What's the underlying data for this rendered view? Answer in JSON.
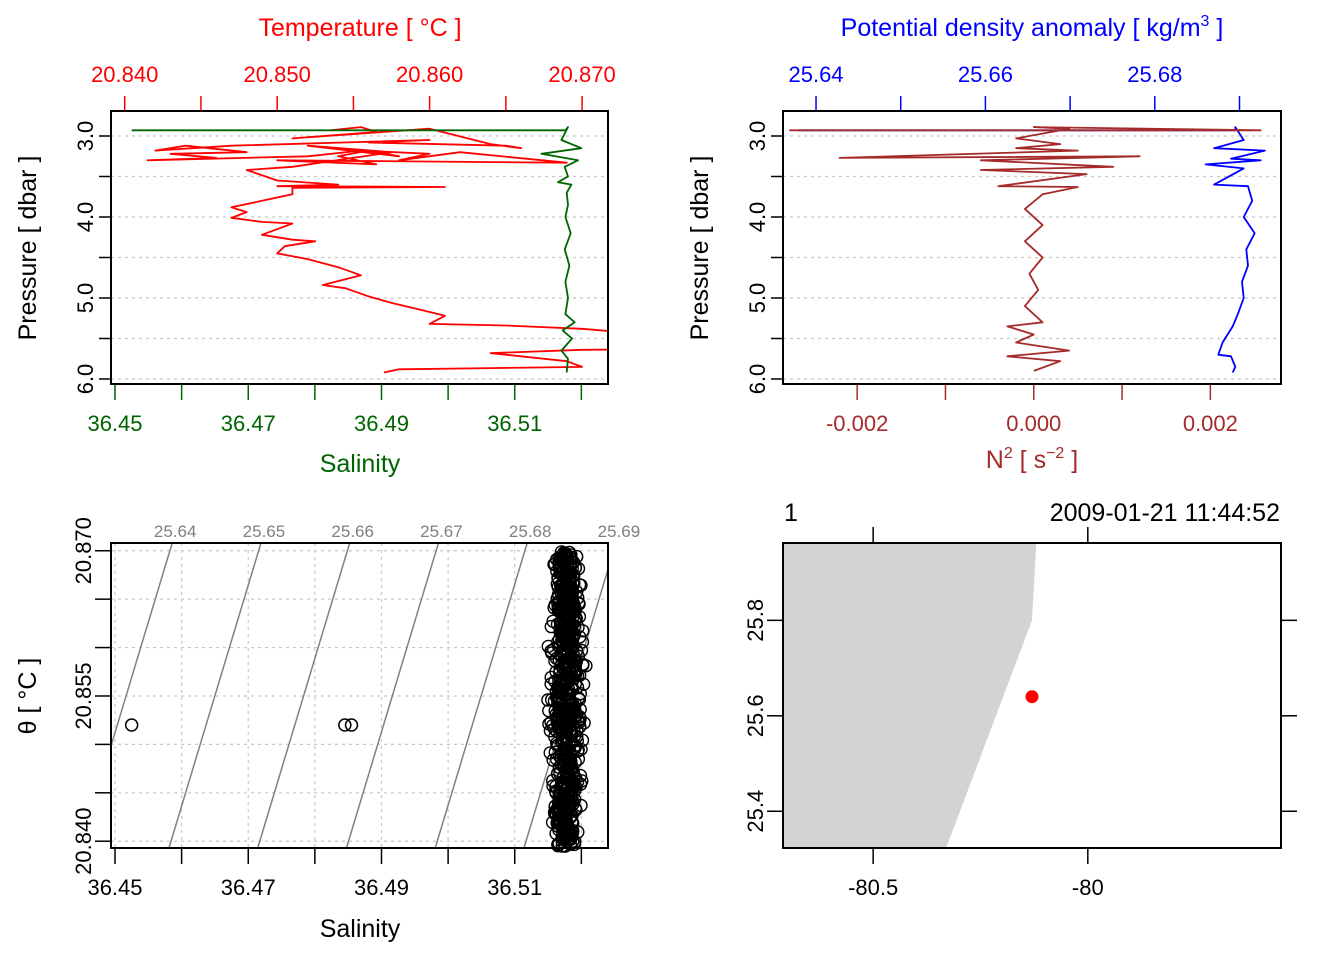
{
  "chart_data": [
    {
      "id": "profile-ts",
      "type": "line",
      "ylabel": "Pressure [ dbar ]",
      "y_ticks": [
        "3.0",
        "4.0",
        "5.0",
        "6.0"
      ],
      "y_minor_ticks": [
        3.0,
        3.5,
        4.0,
        4.5,
        5.0,
        5.5,
        6.0
      ],
      "ylim": [
        6.05,
        2.8
      ],
      "grid": true,
      "top_axis": {
        "label": "Temperature [ °C ]",
        "color": "#ff0000",
        "ticks": [
          "20.840",
          "20.850",
          "20.860",
          "20.870"
        ],
        "tick_values": [
          20.84,
          20.845,
          20.85,
          20.855,
          20.86,
          20.865,
          20.87
        ],
        "range": [
          20.8391,
          20.8717
        ]
      },
      "bottom_axis": {
        "label": "Salinity",
        "color": "#006400",
        "ticks": [
          "36.45",
          "36.47",
          "36.49",
          "36.51"
        ],
        "tick_values": [
          36.45,
          36.46,
          36.47,
          36.48,
          36.49,
          36.5,
          36.51,
          36.52
        ],
        "range": [
          36.4494,
          36.524
        ]
      },
      "series": [
        {
          "name": "Temperature",
          "color": "#ff0000",
          "axis": "top",
          "points": [
            [
              20.8535,
              2.93
            ],
            [
              20.8555,
              2.89
            ],
            [
              20.8565,
              2.95
            ],
            [
              20.851,
              3.03
            ],
            [
              20.86,
              2.91
            ],
            [
              20.864,
              3.1
            ],
            [
              20.866,
              3.15
            ],
            [
              20.865,
              3.12
            ],
            [
              20.856,
              3.08
            ],
            [
              20.86,
              3.05
            ],
            [
              20.847,
              3.12
            ],
            [
              20.842,
              3.18
            ],
            [
              20.844,
              3.12
            ],
            [
              20.848,
              3.2
            ],
            [
              20.843,
              3.22
            ],
            [
              20.846,
              3.27
            ],
            [
              20.8415,
              3.3
            ],
            [
              20.852,
              3.25
            ],
            [
              20.8555,
              3.18
            ],
            [
              20.86,
              3.22
            ],
            [
              20.858,
              3.3
            ],
            [
              20.862,
              3.2
            ],
            [
              20.869,
              3.33
            ],
            [
              20.85,
              3.3
            ],
            [
              20.8565,
              3.35
            ],
            [
              20.854,
              3.25
            ],
            [
              20.856,
              3.18
            ],
            [
              20.858,
              3.25
            ],
            [
              20.852,
              3.12
            ],
            [
              20.8575,
              3.2
            ],
            [
              20.851,
              3.38
            ],
            [
              20.848,
              3.42
            ],
            [
              20.85,
              3.55
            ],
            [
              20.854,
              3.6
            ],
            [
              20.85,
              3.62
            ],
            [
              20.861,
              3.63
            ],
            [
              20.851,
              3.64
            ],
            [
              20.851,
              3.72
            ],
            [
              20.849,
              3.8
            ],
            [
              20.847,
              3.88
            ],
            [
              20.848,
              3.94
            ],
            [
              20.847,
              4.01
            ],
            [
              20.849,
              4.06
            ],
            [
              20.851,
              4.08
            ],
            [
              20.85,
              4.15
            ],
            [
              20.849,
              4.22
            ],
            [
              20.851,
              4.28
            ],
            [
              20.8525,
              4.3
            ],
            [
              20.8505,
              4.36
            ],
            [
              20.85,
              4.45
            ],
            [
              20.852,
              4.52
            ],
            [
              20.854,
              4.62
            ],
            [
              20.8555,
              4.72
            ],
            [
              20.853,
              4.84
            ],
            [
              20.8545,
              4.88
            ],
            [
              20.856,
              4.98
            ],
            [
              20.8575,
              5.06
            ],
            [
              20.8595,
              5.15
            ],
            [
              20.861,
              5.22
            ],
            [
              20.86,
              5.32
            ],
            [
              20.865,
              5.34
            ],
            [
              20.87,
              5.38
            ],
            [
              20.8745,
              5.45
            ],
            [
              20.881,
              5.56
            ],
            [
              20.8845,
              5.62
            ],
            [
              20.87,
              5.64
            ],
            [
              20.864,
              5.68
            ],
            [
              20.869,
              5.78
            ],
            [
              20.87,
              5.85
            ],
            [
              20.858,
              5.88
            ],
            [
              20.857,
              5.92
            ]
          ]
        },
        {
          "name": "Salinity",
          "color": "#006400",
          "axis": "bottom",
          "points": [
            [
              36.4525,
              2.93
            ],
            [
              36.5176,
              2.93
            ],
            [
              36.518,
              2.89
            ],
            [
              36.517,
              3.05
            ],
            [
              36.52,
              3.15
            ],
            [
              36.514,
              3.22
            ],
            [
              36.5195,
              3.3
            ],
            [
              36.5175,
              3.38
            ],
            [
              36.518,
              3.5
            ],
            [
              36.5165,
              3.57
            ],
            [
              36.5185,
              3.6
            ],
            [
              36.5178,
              3.7
            ],
            [
              36.518,
              3.85
            ],
            [
              36.5176,
              4.0
            ],
            [
              36.5184,
              4.2
            ],
            [
              36.5175,
              4.4
            ],
            [
              36.5182,
              4.6
            ],
            [
              36.5176,
              4.8
            ],
            [
              36.518,
              5.0
            ],
            [
              36.5176,
              5.2
            ],
            [
              36.519,
              5.3
            ],
            [
              36.5172,
              5.4
            ],
            [
              36.5186,
              5.5
            ],
            [
              36.517,
              5.65
            ],
            [
              36.518,
              5.75
            ],
            [
              36.5178,
              5.92
            ]
          ]
        }
      ]
    },
    {
      "id": "profile-density-n2",
      "type": "line",
      "ylabel": "Pressure [ dbar ]",
      "y_ticks": [
        "3.0",
        "4.0",
        "5.0",
        "6.0"
      ],
      "y_minor_ticks": [
        3.0,
        3.5,
        4.0,
        4.5,
        5.0,
        5.5,
        6.0
      ],
      "ylim": [
        6.05,
        2.8
      ],
      "grid": true,
      "top_axis": {
        "label": "Potential density anomaly [ kg/m³ ]",
        "label_main": "Potential density anomaly [ kg/m",
        "label_sup": "3",
        "label_end": " ]",
        "color": "#0000ff",
        "ticks": [
          "25.64",
          "25.66",
          "25.68"
        ],
        "tick_values": [
          25.64,
          25.65,
          25.66,
          25.67,
          25.68,
          25.69
        ],
        "range": [
          25.6361,
          25.6949
        ]
      },
      "bottom_axis": {
        "label": "N² [ s⁻² ]",
        "label_main": "N",
        "label_sup": "2",
        "label_mid": " [ s",
        "label_sup2": "−2",
        "label_end": " ]",
        "color": "#a52a2a",
        "ticks": [
          "-0.002",
          "0.000",
          "0.002"
        ],
        "tick_values": [
          -0.002,
          -0.001,
          0.0,
          0.001,
          0.002
        ],
        "range": [
          -0.00284,
          0.0028
        ]
      },
      "series": [
        {
          "name": "Potential density anomaly",
          "color": "#0000ff",
          "axis": "top",
          "points": [
            [
              25.638,
              2.93
            ],
            [
              25.6895,
              2.93
            ],
            [
              25.6895,
              2.89
            ],
            [
              25.6905,
              3.05
            ],
            [
              25.687,
              3.15
            ],
            [
              25.693,
              3.18
            ],
            [
              25.689,
              3.28
            ],
            [
              25.6925,
              3.3
            ],
            [
              25.686,
              3.35
            ],
            [
              25.6905,
              3.4
            ],
            [
              25.687,
              3.6
            ],
            [
              25.691,
              3.62
            ],
            [
              25.6915,
              3.8
            ],
            [
              25.6905,
              4.0
            ],
            [
              25.6918,
              4.2
            ],
            [
              25.6908,
              4.4
            ],
            [
              25.691,
              4.6
            ],
            [
              25.6903,
              4.8
            ],
            [
              25.6905,
              5.0
            ],
            [
              25.6898,
              5.2
            ],
            [
              25.6892,
              5.35
            ],
            [
              25.688,
              5.55
            ],
            [
              25.6875,
              5.7
            ],
            [
              25.689,
              5.72
            ],
            [
              25.6895,
              5.85
            ],
            [
              25.6892,
              5.92
            ]
          ]
        },
        {
          "name": "N2",
          "color": "#a52a2a",
          "axis": "bottom",
          "points": [
            [
              -0.00277,
              2.93
            ],
            [
              0.00257,
              2.93
            ],
            [
              0.0,
              2.89
            ],
            [
              0.0004,
              2.91
            ],
            [
              -0.0002,
              3.03
            ],
            [
              0.0003,
              3.1
            ],
            [
              -0.0002,
              3.15
            ],
            [
              0.0005,
              3.18
            ],
            [
              -0.0022,
              3.27
            ],
            [
              0.0012,
              3.25
            ],
            [
              -0.0006,
              3.3
            ],
            [
              0.0009,
              3.38
            ],
            [
              -0.0006,
              3.42
            ],
            [
              0.0006,
              3.47
            ],
            [
              -0.0004,
              3.62
            ],
            [
              0.0005,
              3.63
            ],
            [
              0.0001,
              3.72
            ],
            [
              -0.0001,
              3.9
            ],
            [
              0.0001,
              4.1
            ],
            [
              -0.0001,
              4.3
            ],
            [
              0.0001,
              4.5
            ],
            [
              -5e-05,
              4.7
            ],
            [
              5e-05,
              4.9
            ],
            [
              -0.0001,
              5.1
            ],
            [
              0.0001,
              5.3
            ],
            [
              -0.0003,
              5.35
            ],
            [
              0.0,
              5.45
            ],
            [
              -0.0002,
              5.55
            ],
            [
              0.0004,
              5.65
            ],
            [
              -0.0003,
              5.72
            ],
            [
              0.0003,
              5.78
            ],
            [
              0.0,
              5.9
            ]
          ]
        }
      ]
    },
    {
      "id": "ts-diagram",
      "type": "scatter",
      "xlabel": "Salinity",
      "ylabel": "θ [ °C ]",
      "x_ticks": [
        "36.45",
        "36.47",
        "36.49",
        "36.51"
      ],
      "x_tick_values": [
        36.45,
        36.46,
        36.47,
        36.48,
        36.49,
        36.5,
        36.51,
        36.52
      ],
      "y_ticks": [
        "20.840",
        "20.855",
        "20.870"
      ],
      "y_tick_values": [
        20.84,
        20.845,
        20.85,
        20.855,
        20.86,
        20.865,
        20.87
      ],
      "xlim": [
        36.4494,
        36.524
      ],
      "ylim": [
        20.8393,
        20.8708
      ],
      "grid": true,
      "isopycnals": {
        "color": "#808080",
        "labels": [
          "25.64",
          "25.65",
          "25.66",
          "25.67",
          "25.68",
          "25.69"
        ],
        "values": [
          25.64,
          25.65,
          25.66,
          25.67,
          25.68,
          25.69
        ]
      },
      "outliers": [
        [
          36.4525,
          20.852
        ],
        [
          36.4845,
          20.852
        ],
        [
          36.4855,
          20.852
        ]
      ],
      "cluster": {
        "salinity_center": 36.5177,
        "salinity_spread": 0.0017,
        "theta_range": [
          20.8395,
          20.87
        ]
      }
    },
    {
      "id": "station-map",
      "type": "scatter",
      "top_left_label": "1",
      "top_right_label": "2009-01-21 11:44:52",
      "x_ticks": [
        "-80.5",
        "-80"
      ],
      "x_tick_values": [
        -80.5,
        -80.0
      ],
      "y_ticks": [
        "25.4",
        "25.6",
        "25.8"
      ],
      "y_tick_values": [
        25.4,
        25.6,
        25.8
      ],
      "xlim": [
        -80.71,
        -79.55
      ],
      "ylim": [
        25.323,
        25.962
      ],
      "land_color": "#d3d3d3",
      "coastline": [
        [
          -80.71,
          25.962
        ],
        [
          -80.12,
          25.962
        ],
        [
          -80.13,
          25.8
        ],
        [
          -80.33,
          25.323
        ],
        [
          -80.71,
          25.323
        ]
      ],
      "station": {
        "lon": -80.13,
        "lat": 25.64,
        "color": "#ff0000"
      }
    }
  ]
}
